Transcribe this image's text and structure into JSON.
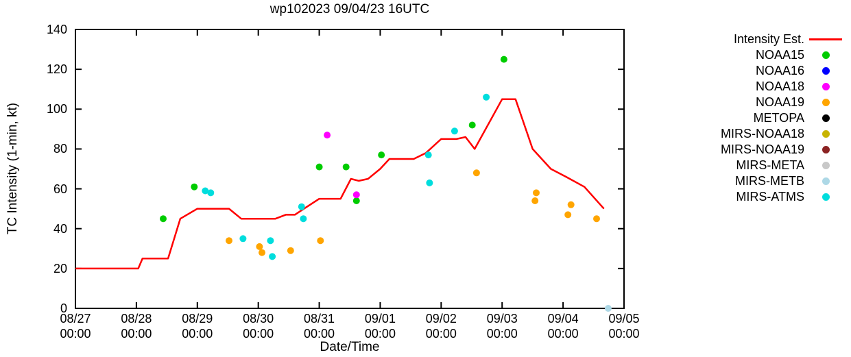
{
  "title": "wp102023 09/04/23 16UTC",
  "legend": {
    "items": [
      {
        "label": "Intensity Est.",
        "marker": "line",
        "color": "#ff0000"
      },
      {
        "label": "NOAA15",
        "marker": "dot",
        "color": "#00cc00"
      },
      {
        "label": "NOAA16",
        "marker": "dot",
        "color": "#0000ff"
      },
      {
        "label": "NOAA18",
        "marker": "dot",
        "color": "#ff00ff"
      },
      {
        "label": "NOAA19",
        "marker": "dot",
        "color": "#ffa500"
      },
      {
        "label": "METOPA",
        "marker": "dot",
        "color": "#000000"
      },
      {
        "label": "MIRS-NOAA18",
        "marker": "dot",
        "color": "#c8b400"
      },
      {
        "label": "MIRS-NOAA19",
        "marker": "dot",
        "color": "#8b2323"
      },
      {
        "label": "MIRS-META",
        "marker": "dot",
        "color": "#c8c8c8"
      },
      {
        "label": "MIRS-METB",
        "marker": "dot",
        "color": "#add8e6"
      },
      {
        "label": "MIRS-ATMS",
        "marker": "dot",
        "color": "#00dddd"
      }
    ]
  },
  "chart_data": {
    "type": "line+scatter",
    "title": "wp102023 09/04/23 16UTC",
    "xlabel": "Date/Time",
    "ylabel": "TC Intensity (1-min, kt)",
    "grid": false,
    "legend_position": "outside-right-top",
    "x_axis": {
      "unit": "days since 08/27 00:00 UTC",
      "lim": [
        0,
        9
      ],
      "ticks": [
        {
          "d": 0,
          "label": "08/27",
          "time": "00:00"
        },
        {
          "d": 1,
          "label": "08/28",
          "time": "00:00"
        },
        {
          "d": 2,
          "label": "08/29",
          "time": "00:00"
        },
        {
          "d": 3,
          "label": "08/30",
          "time": "00:00"
        },
        {
          "d": 4,
          "label": "08/31",
          "time": "00:00"
        },
        {
          "d": 5,
          "label": "09/01",
          "time": "00:00"
        },
        {
          "d": 6,
          "label": "09/02",
          "time": "00:00"
        },
        {
          "d": 7,
          "label": "09/03",
          "time": "00:00"
        },
        {
          "d": 8,
          "label": "09/04",
          "time": "00:00"
        },
        {
          "d": 9,
          "label": "09/05",
          "time": "00:00"
        }
      ]
    },
    "y_axis": {
      "lim": [
        0,
        140
      ],
      "ticks": [
        0,
        20,
        40,
        60,
        80,
        100,
        120,
        140
      ]
    },
    "intensity_line": {
      "name": "Intensity Est.",
      "color": "#ff0000",
      "points": [
        [
          0.0,
          20
        ],
        [
          1.03,
          20
        ],
        [
          1.1,
          25
        ],
        [
          1.52,
          25
        ],
        [
          1.72,
          45
        ],
        [
          2.0,
          50
        ],
        [
          2.52,
          50
        ],
        [
          2.72,
          45
        ],
        [
          3.28,
          45
        ],
        [
          3.45,
          47
        ],
        [
          3.6,
          47
        ],
        [
          3.75,
          50
        ],
        [
          4.0,
          55
        ],
        [
          4.35,
          55
        ],
        [
          4.52,
          65
        ],
        [
          4.65,
          64
        ],
        [
          4.8,
          65
        ],
        [
          5.0,
          70
        ],
        [
          5.15,
          75
        ],
        [
          5.55,
          75
        ],
        [
          5.75,
          78
        ],
        [
          6.0,
          85
        ],
        [
          6.25,
          85
        ],
        [
          6.4,
          86
        ],
        [
          6.55,
          80
        ],
        [
          7.0,
          105
        ],
        [
          7.22,
          105
        ],
        [
          7.5,
          80
        ],
        [
          7.8,
          70
        ],
        [
          8.05,
          66
        ],
        [
          8.35,
          61
        ],
        [
          8.67,
          50
        ]
      ]
    },
    "satellite_series": [
      {
        "name": "NOAA15",
        "color": "#00cc00",
        "points": [
          [
            1.44,
            45
          ],
          [
            1.95,
            61
          ],
          [
            4.0,
            71
          ],
          [
            4.44,
            71
          ],
          [
            4.61,
            54
          ],
          [
            5.02,
            77
          ],
          [
            6.51,
            92
          ],
          [
            7.03,
            125
          ]
        ]
      },
      {
        "name": "NOAA16",
        "color": "#0000ff",
        "points": []
      },
      {
        "name": "NOAA18",
        "color": "#ff00ff",
        "points": [
          [
            4.13,
            87
          ],
          [
            4.61,
            57
          ]
        ]
      },
      {
        "name": "NOAA19",
        "color": "#ffa500",
        "points": [
          [
            2.52,
            34
          ],
          [
            3.02,
            31
          ],
          [
            3.06,
            28
          ],
          [
            3.53,
            29
          ],
          [
            4.02,
            34
          ],
          [
            6.58,
            68
          ],
          [
            7.56,
            58
          ],
          [
            7.54,
            54
          ],
          [
            8.13,
            52
          ],
          [
            8.08,
            47
          ],
          [
            8.55,
            45
          ]
        ]
      },
      {
        "name": "METOPA",
        "color": "#000000",
        "points": []
      },
      {
        "name": "MIRS-NOAA18",
        "color": "#c8b400",
        "points": []
      },
      {
        "name": "MIRS-NOAA19",
        "color": "#8b2323",
        "points": []
      },
      {
        "name": "MIRS-META",
        "color": "#c8c8c8",
        "points": []
      },
      {
        "name": "MIRS-METB",
        "color": "#add8e6",
        "points": [
          [
            8.74,
            0
          ]
        ]
      },
      {
        "name": "MIRS-ATMS",
        "color": "#00dddd",
        "points": [
          [
            2.13,
            59
          ],
          [
            2.22,
            58
          ],
          [
            2.75,
            35
          ],
          [
            3.2,
            34
          ],
          [
            3.23,
            26
          ],
          [
            3.71,
            51
          ],
          [
            3.74,
            45
          ],
          [
            5.79,
            77
          ],
          [
            5.81,
            63
          ],
          [
            6.22,
            89
          ],
          [
            6.74,
            106
          ]
        ]
      }
    ]
  }
}
